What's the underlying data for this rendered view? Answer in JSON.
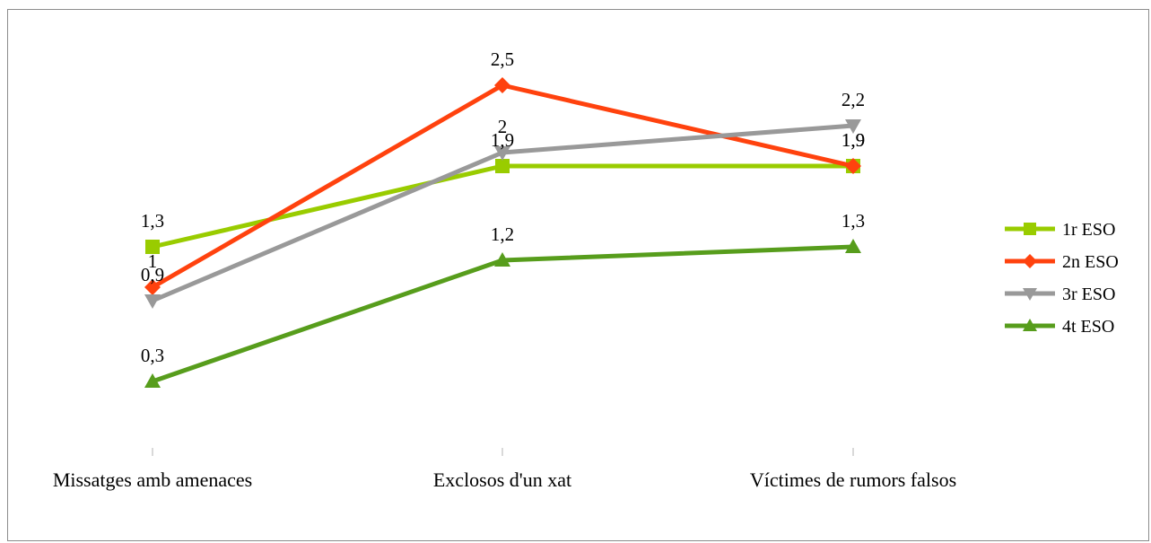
{
  "chart_data": {
    "type": "line",
    "categories": [
      "Missatges amb amenaces",
      "Exclosos d'un xat",
      "Víctimes de rumors falsos"
    ],
    "series": [
      {
        "name": "1r ESO",
        "values": [
          1.3,
          1.9,
          1.9
        ],
        "labels": [
          "1,3",
          "1,9",
          "1,9"
        ],
        "color": "#99cc00",
        "marker": "square"
      },
      {
        "name": "2n ESO",
        "values": [
          1.0,
          2.5,
          1.9
        ],
        "labels": [
          "1",
          "2,5",
          "1,9"
        ],
        "color": "#ff420e",
        "marker": "diamond"
      },
      {
        "name": "3r ESO",
        "values": [
          0.9,
          2.0,
          2.2
        ],
        "labels": [
          "0,9",
          "2",
          "2,2"
        ],
        "color": "#999999",
        "marker": "triangle-down"
      },
      {
        "name": "4t ESO",
        "values": [
          0.3,
          1.2,
          1.3
        ],
        "labels": [
          "0,3",
          "1,2",
          "1,3"
        ],
        "color": "#579d1c",
        "marker": "triangle-up"
      }
    ],
    "ylim": [
      -0.1,
      2.8
    ],
    "title": "",
    "xlabel": "",
    "ylabel": "",
    "grid": false,
    "legend": "right"
  }
}
